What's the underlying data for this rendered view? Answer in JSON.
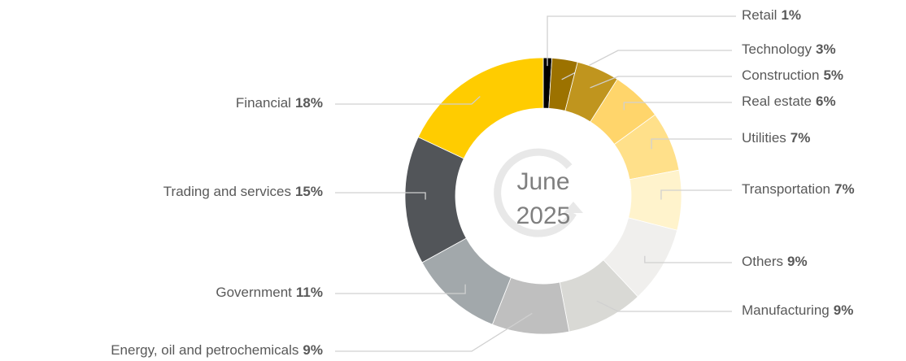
{
  "chart_data": {
    "type": "donut",
    "center_text": [
      "June",
      "2025"
    ],
    "categories": [
      "Retail",
      "Technology",
      "Construction",
      "Real estate",
      "Utilities",
      "Transportation",
      "Others",
      "Manufacturing",
      "Energy, oil and petrochemicals",
      "Government",
      "Trading and services",
      "Financial"
    ],
    "values": [
      1,
      3,
      5,
      6,
      7,
      7,
      9,
      9,
      9,
      11,
      15,
      18
    ],
    "value_labels": [
      "1%",
      "3%",
      "5%",
      "6%",
      "7%",
      "7%",
      "9%",
      "9%",
      "9%",
      "11%",
      "15%",
      "18%"
    ],
    "colors": [
      "#000000",
      "#9c7200",
      "#c0951e",
      "#ffd56b",
      "#ffe08a",
      "#fff3cc",
      "#f0efed",
      "#d9d9d5",
      "#bfbfbf",
      "#a2a8ab",
      "#525559",
      "#ffcc00"
    ]
  }
}
